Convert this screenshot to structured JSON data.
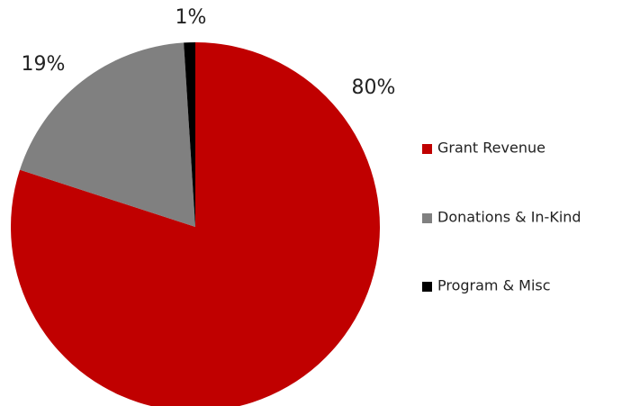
{
  "chart_data": {
    "type": "pie",
    "categories": [
      "Grant Revenue",
      "Donations & In-Kind",
      "Program & Misc"
    ],
    "values": [
      80,
      19,
      1
    ],
    "value_labels": [
      "80%",
      "19%",
      "1%"
    ],
    "colors": [
      "#c00000",
      "#808080",
      "#000000"
    ],
    "legend": "right"
  }
}
